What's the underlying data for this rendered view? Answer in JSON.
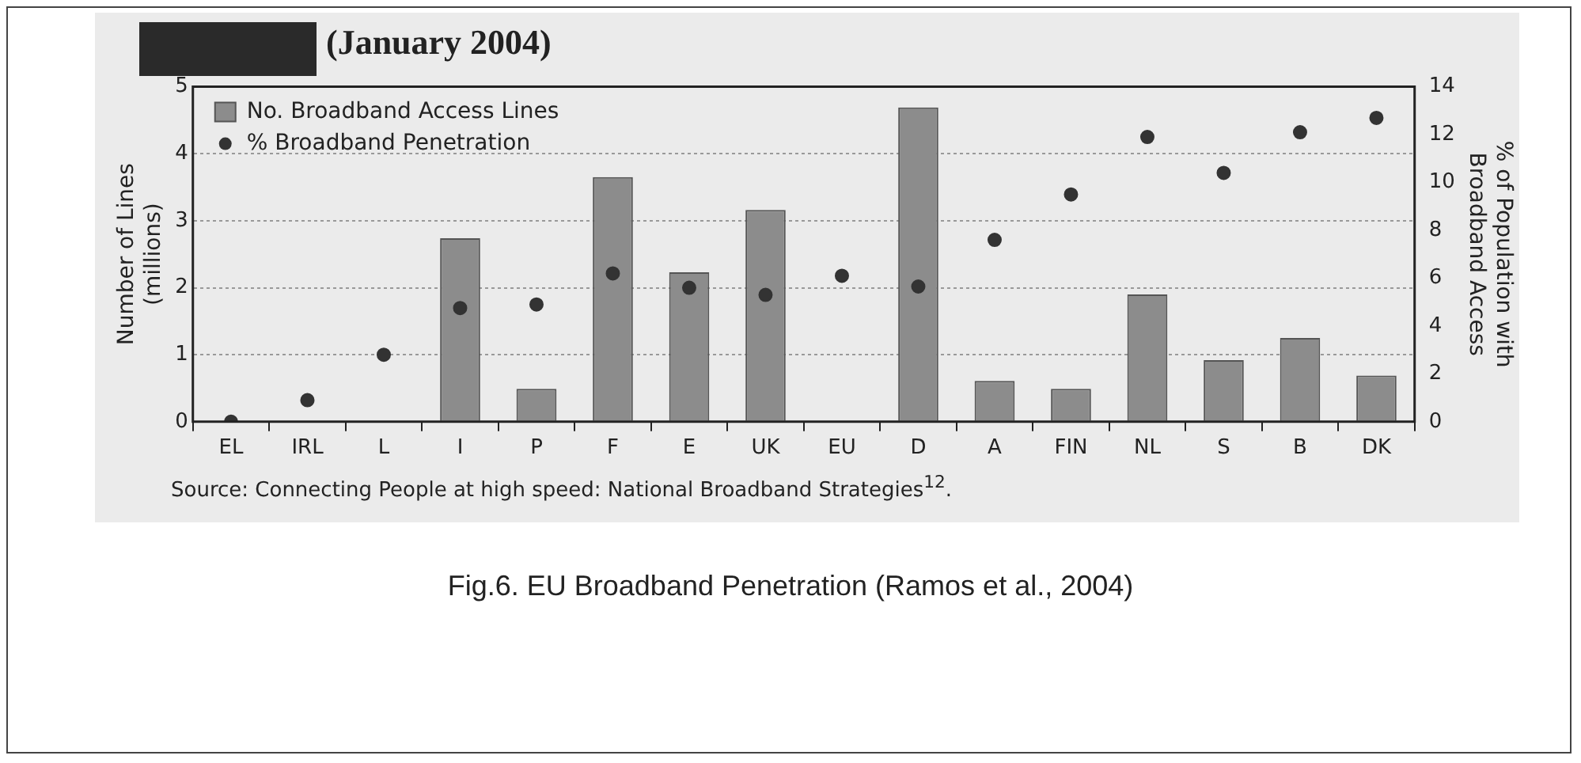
{
  "chart_data": {
    "type": "bar",
    "title": "(January 2004)",
    "ylabel": "Number of Lines\n(millions)",
    "y2label": "% of Population with\nBroadband Access",
    "categories": [
      "EL",
      "IRL",
      "L",
      "I",
      "P",
      "F",
      "E",
      "UK",
      "EU",
      "D",
      "A",
      "FIN",
      "NL",
      "S",
      "B",
      "DK"
    ],
    "series": [
      {
        "name": "No. Broadband Access Lines",
        "color": "#8c8c8c",
        "values": [
          null,
          null,
          null,
          2.74,
          0.49,
          3.65,
          2.23,
          3.16,
          null,
          4.69,
          0.61,
          0.49,
          1.9,
          0.92,
          1.25,
          0.69
        ]
      },
      {
        "name": "% Broadband Penetration",
        "type": "scatter",
        "axis": "y2",
        "color": "#333333",
        "values": [
          0,
          0.9,
          2.8,
          4.75,
          4.9,
          6.2,
          5.6,
          5.3,
          6.1,
          5.65,
          7.6,
          9.5,
          11.9,
          10.4,
          12.1,
          12.7
        ]
      }
    ],
    "ylim": [
      0,
      5
    ],
    "yticks": [
      0,
      1,
      2,
      3,
      4,
      5
    ],
    "y2lim": [
      0,
      14
    ],
    "y2ticks": [
      0,
      2,
      4,
      6,
      8,
      10,
      12,
      14
    ],
    "grid": "y",
    "legend": "top left",
    "marker": "circle",
    "annotations": [
      "Source: Connecting People at high speed: National Broadband Strategies$^{12}$.",
      "Fig.6. EU Broadband Penetration (Ramos et al., 2004)"
    ]
  }
}
